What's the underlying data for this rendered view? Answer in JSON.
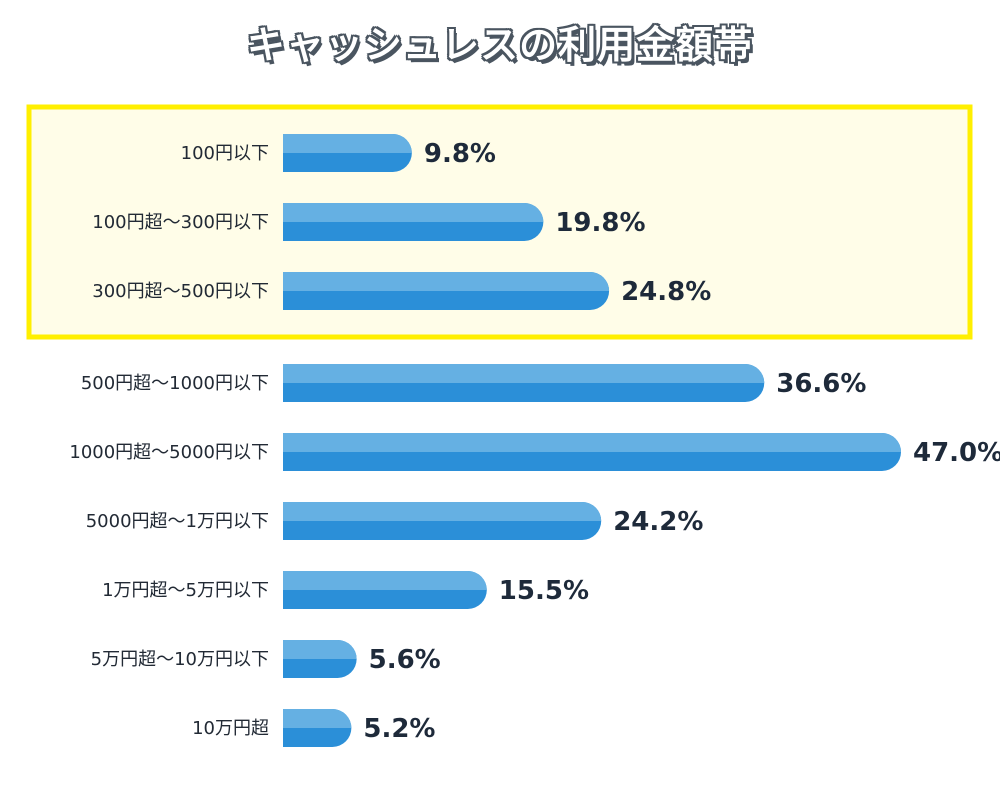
{
  "chart_data": {
    "type": "bar",
    "orientation": "horizontal",
    "title": "キャッシュレスの利用金額帯",
    "xlabel": "",
    "ylabel": "",
    "unit": "%",
    "xlim": [
      0,
      47.0
    ],
    "grid": false,
    "categories": [
      "100円以下",
      "100円超〜300円以下",
      "300円超〜500円以下",
      "500円超〜1000円以下",
      "1000円超〜5000円以下",
      "5000円超〜1万円以下",
      "1万円超〜5万円以下",
      "5万円超〜10万円以下",
      "10万円超"
    ],
    "values": [
      9.8,
      19.8,
      24.8,
      36.6,
      47.0,
      24.2,
      15.5,
      5.6,
      5.2
    ],
    "value_labels": [
      "9.8%",
      "19.8%",
      "24.8%",
      "36.6%",
      "47.0%",
      "24.2%",
      "15.5%",
      "5.6%",
      "5.2%"
    ],
    "highlight_range": [
      0,
      2
    ],
    "colors": {
      "bar_top": "#65b0e3",
      "bar_bottom": "#2b8fd8",
      "highlight_fill": "#fffde8",
      "highlight_border": "#ffef00",
      "value_text": "#1e2a3a",
      "label_text": "#222a35"
    }
  }
}
